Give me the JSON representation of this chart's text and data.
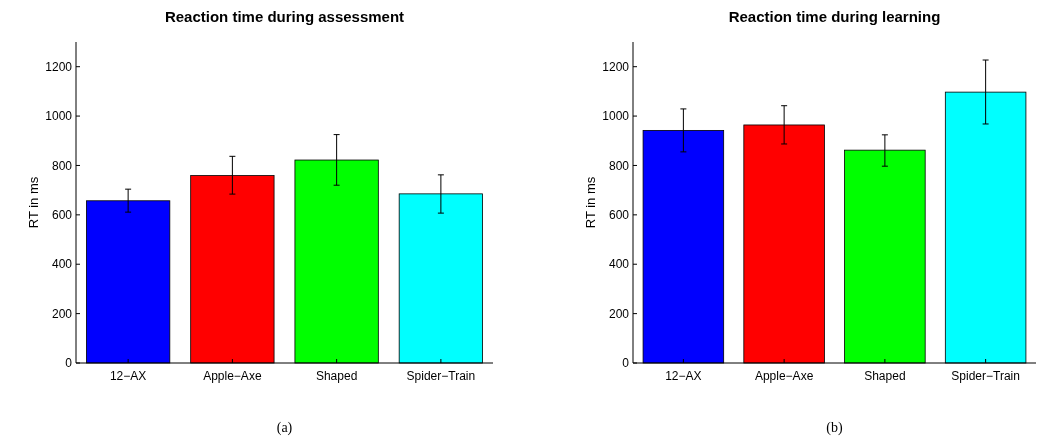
{
  "chart_data": [
    {
      "type": "bar",
      "title": "Reaction time during assessment",
      "ylabel": "RT in ms",
      "categories": [
        "12−AX",
        "Apple−Axe",
        "Shaped",
        "Spider−Train"
      ],
      "values": [
        657,
        759,
        822,
        685
      ],
      "colors": [
        "#0000ff",
        "#ff0000",
        "#00ff00",
        "#00ffff"
      ],
      "errors": [
        [
          611,
          704
        ],
        [
          684,
          837
        ],
        [
          720,
          925
        ],
        [
          607,
          762
        ]
      ],
      "ylim": [
        0,
        1300
      ],
      "yticks": [
        0,
        200,
        400,
        600,
        800,
        1000,
        1200
      ],
      "grid": false,
      "annotations": [
        "(a)"
      ]
    },
    {
      "type": "bar",
      "title": "Reaction time during learning",
      "ylabel": "RT in ms",
      "categories": [
        "12−AX",
        "Apple−Axe",
        "Shaped",
        "Spider−Train"
      ],
      "values": [
        942,
        964,
        862,
        1097
      ],
      "colors": [
        "#0000ff",
        "#ff0000",
        "#00ff00",
        "#00ffff"
      ],
      "errors": [
        [
          855,
          1029
        ],
        [
          887,
          1042
        ],
        [
          797,
          924
        ],
        [
          968,
          1227
        ]
      ],
      "ylim": [
        0,
        1300
      ],
      "yticks": [
        0,
        200,
        400,
        600,
        800,
        1000,
        1200
      ],
      "grid": false,
      "annotations": [
        "(b)"
      ]
    }
  ]
}
